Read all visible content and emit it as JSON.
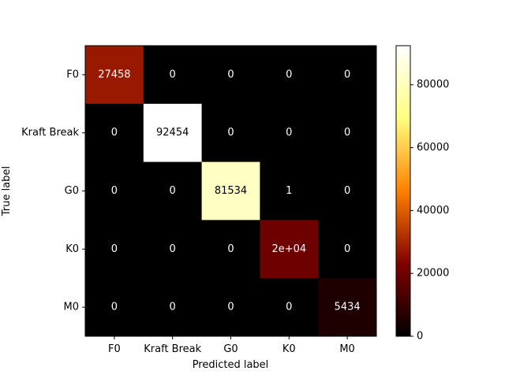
{
  "chart_data": {
    "type": "heatmap",
    "title": "",
    "xlabel": "Predicted label",
    "ylabel": "True label",
    "x_categories": [
      "F0",
      "Kraft Break",
      "G0",
      "K0",
      "M0"
    ],
    "y_categories": [
      "F0",
      "Kraft Break",
      "G0",
      "K0",
      "M0"
    ],
    "values": [
      [
        27458,
        0,
        0,
        0,
        0
      ],
      [
        0,
        92454,
        0,
        0,
        0
      ],
      [
        0,
        0,
        81534,
        1,
        0
      ],
      [
        0,
        0,
        0,
        20000,
        0
      ],
      [
        0,
        0,
        0,
        0,
        5434
      ]
    ],
    "cell_labels": [
      [
        "27458",
        "0",
        "0",
        "0",
        "0"
      ],
      [
        "0",
        "92454",
        "0",
        "0",
        "0"
      ],
      [
        "0",
        "0",
        "81534",
        "1",
        "0"
      ],
      [
        "0",
        "0",
        "0",
        "2e+04",
        "0"
      ],
      [
        "0",
        "0",
        "0",
        "0",
        "5434"
      ]
    ],
    "colormap": "afmhot",
    "colorbar": {
      "range": [
        0,
        92454
      ],
      "ticks": [
        0,
        20000,
        40000,
        60000,
        80000
      ],
      "tick_labels": [
        "0",
        "20000",
        "40000",
        "60000",
        "80000"
      ]
    },
    "grid": false,
    "legend": "colorbar-right"
  }
}
